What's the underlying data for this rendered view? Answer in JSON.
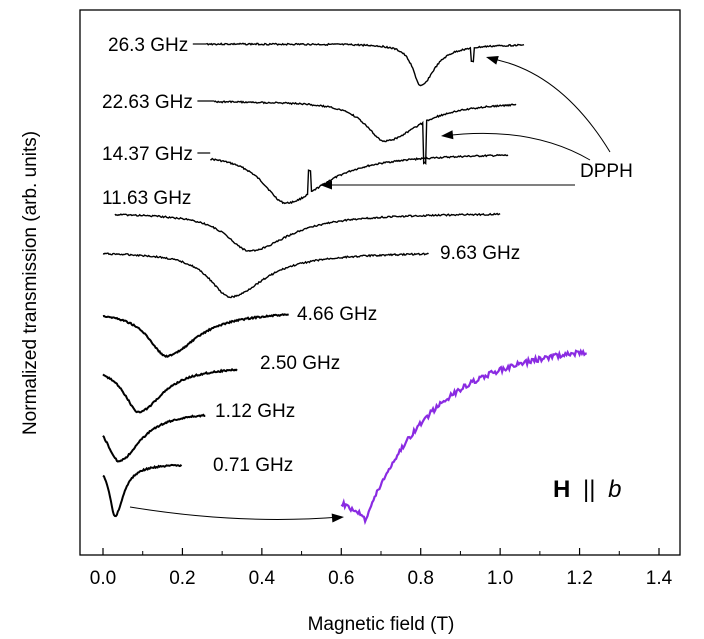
{
  "chart_data": {
    "type": "line",
    "xlabel": "Magnetic field (T)",
    "ylabel": "Normalized transmission (arb. units)",
    "xlim": [
      0.0,
      1.4
    ],
    "xticks": [
      "0.0",
      "0.2",
      "0.4",
      "0.6",
      "0.8",
      "1.0",
      "1.2",
      "1.4"
    ],
    "annotation_label": "DPPH",
    "orientation_bold": "H",
    "orientation_sep": "||",
    "orientation_italic": "b",
    "series": [
      {
        "name": "26.3 GHz",
        "min_x": 0.8,
        "dpph_x": 0.93
      },
      {
        "name": "22.63 GHz",
        "min_x": 0.71,
        "dpph_x": 0.81
      },
      {
        "name": "14.37 GHz",
        "min_x": 0.46,
        "dpph_x": 0.52
      },
      {
        "name": "11.63 GHz",
        "min_x": 0.37
      },
      {
        "name": "9.63 GHz",
        "min_x": 0.32
      },
      {
        "name": "4.66 GHz",
        "min_x": 0.16
      },
      {
        "name": "2.50 GHz",
        "min_x": 0.09
      },
      {
        "name": "1.12 GHz",
        "min_x": 0.04
      },
      {
        "name": "0.71 GHz",
        "min_x": 0.03
      },
      {
        "name": "",
        "min_x": 0.66
      }
    ],
    "colors": {
      "axis": "#000000",
      "trace": "#000000",
      "highlight": "#8a2be2"
    }
  }
}
